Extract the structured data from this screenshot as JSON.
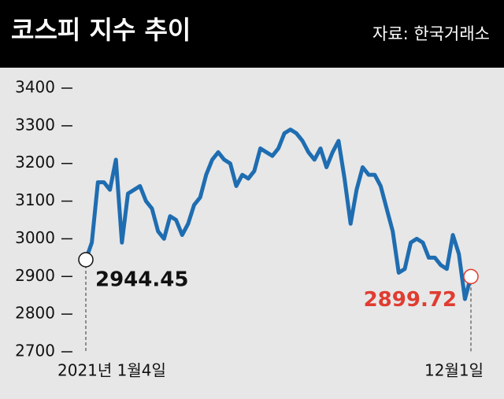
{
  "chart_data": {
    "type": "line",
    "title": "코스피 지수 추이",
    "source": "자료: 한국거래소",
    "categories": [
      "2021년 1월4일",
      null,
      null,
      null,
      null,
      null,
      null,
      null,
      null,
      null,
      null,
      null,
      null,
      null,
      null,
      null,
      null,
      null,
      null,
      null,
      null,
      null,
      null,
      null,
      null,
      null,
      null,
      null,
      null,
      null,
      null,
      null,
      null,
      null,
      null,
      null,
      null,
      null,
      null,
      null,
      null,
      null,
      null,
      null,
      null,
      null,
      null,
      null,
      null,
      null,
      null,
      null,
      null,
      null,
      null,
      null,
      null,
      null,
      null,
      null,
      null,
      null,
      null,
      null,
      "12월1일"
    ],
    "values": [
      2944.45,
      2990,
      3150,
      3150,
      3130,
      3210,
      2990,
      3120,
      3130,
      3140,
      3100,
      3080,
      3020,
      3000,
      3060,
      3050,
      3010,
      3040,
      3090,
      3110,
      3170,
      3210,
      3230,
      3210,
      3200,
      3140,
      3170,
      3160,
      3180,
      3240,
      3230,
      3220,
      3240,
      3280,
      3290,
      3280,
      3260,
      3230,
      3210,
      3240,
      3190,
      3230,
      3260,
      3160,
      3040,
      3130,
      3190,
      3170,
      3170,
      3140,
      3080,
      3020,
      2910,
      2920,
      2990,
      3000,
      2990,
      2950,
      2950,
      2930,
      2920,
      3010,
      2960,
      2840,
      2899.72
    ],
    "color": "#1f6db1",
    "ylim": [
      2700,
      3400
    ],
    "yticks": [
      2700,
      2800,
      2900,
      3000,
      3100,
      3200,
      3300,
      3400
    ]
  }
}
